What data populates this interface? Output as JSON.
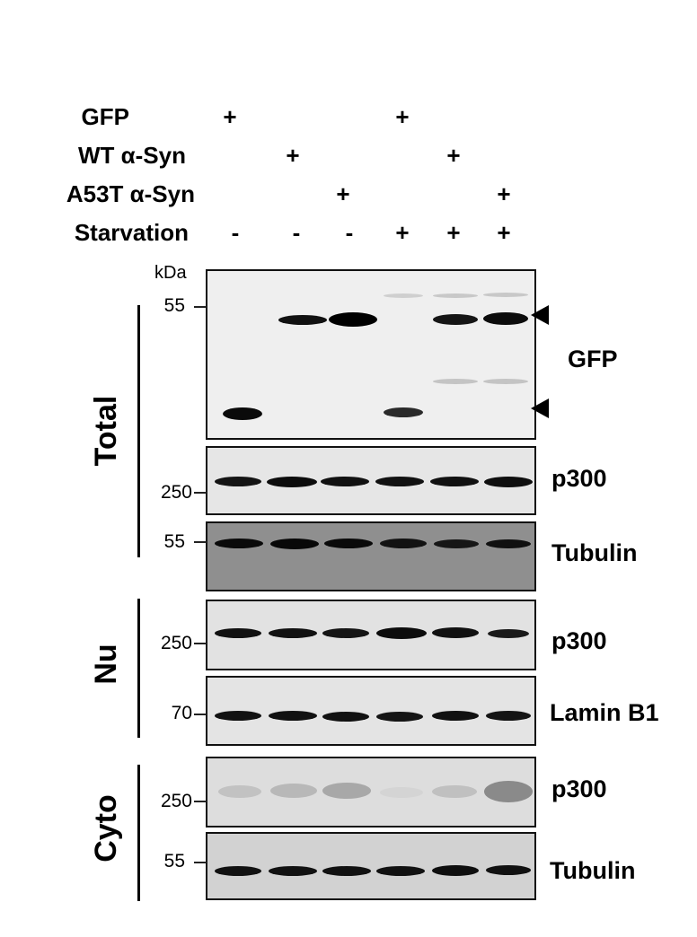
{
  "conditions": [
    {
      "label": "GFP",
      "signs": [
        "+",
        "",
        "",
        "+",
        "",
        ""
      ]
    },
    {
      "label": "WT α-Syn",
      "signs": [
        "",
        "+",
        "",
        "",
        "+",
        ""
      ]
    },
    {
      "label": "A53T α-Syn",
      "signs": [
        "",
        "",
        "+",
        "",
        "",
        "+"
      ]
    },
    {
      "label": "Starvation",
      "signs": [
        "-",
        "-",
        "-",
        "+",
        "+",
        "+"
      ]
    }
  ],
  "kda_label": "kDa",
  "groups": [
    {
      "label": "Total"
    },
    {
      "label": "Nu"
    },
    {
      "label": "Cyto"
    }
  ],
  "panels": [
    {
      "protein": "GFP",
      "markers": [
        "55"
      ],
      "background": "#efefef"
    },
    {
      "protein": "p300",
      "markers": [
        "250"
      ],
      "background": "#e6e6e6"
    },
    {
      "protein": "Tubulin",
      "markers": [
        "55"
      ],
      "background": "#8f8f8f"
    },
    {
      "protein": "p300",
      "markers": [
        "250"
      ],
      "background": "#e2e2e2"
    },
    {
      "protein": "Lamin B1",
      "markers": [
        "70"
      ],
      "background": "#e4e4e4"
    },
    {
      "protein": "p300",
      "markers": [
        "250"
      ],
      "background": "#dddddd"
    },
    {
      "protein": "Tubulin",
      "markers": [
        "55"
      ],
      "background": "#d2d2d2"
    }
  ]
}
